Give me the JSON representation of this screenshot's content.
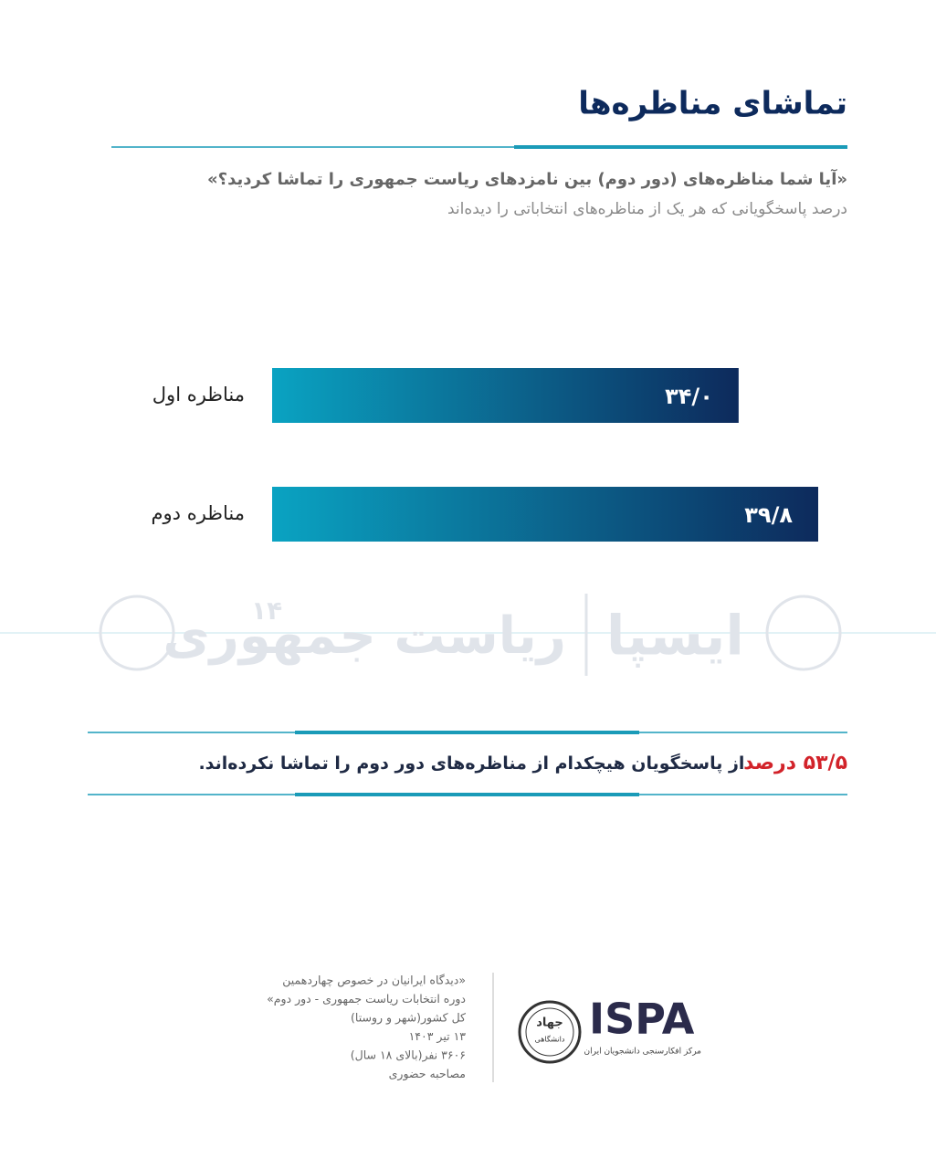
{
  "chart_data": {
    "type": "hbar",
    "title": "تماشای مناظره‌ها",
    "question": "«آیا شما مناظره‌های (دور دوم) بین نامزدهای ریاست جمهوری را تماشا کردید؟»",
    "subtitle": "درصد پاسخگویانی که هر یک از مناظره‌های انتخاباتی را دیده‌اند",
    "categories": [
      "مناظره اول",
      "مناظره دوم"
    ],
    "values": [
      34.0,
      39.8
    ],
    "value_labels": [
      "۳۴/۰",
      "۳۹/۸"
    ],
    "colors": [
      "#0aa3c2",
      "#0d2a5c"
    ],
    "watermark": [
      "ایسپا",
      "ریاست جمهوری",
      "۱۴"
    ],
    "highlight": {
      "number": "۵۳/۵ درصد",
      "text": "از پاسخگویان هیچکدام از مناظره‌های دور دوم را تماشا نکرده‌اند."
    },
    "footer": {
      "notes": [
        "«دیدگاه ایرانیان در خصوص چهاردهمین",
        "دوره انتخابات ریاست جمهوری - دور دوم»",
        "کل کشور(شهر و روستا)",
        "۱۳ تیر ۱۴۰۳",
        "۳۶۰۶ نفر(بالای ۱۸ سال)",
        "مصاحبه حضوری"
      ],
      "logo_text": [
        "جهاد",
        "دانشگاهی"
      ],
      "brand": "ISPA",
      "brand_subtitle": "مرکز افکارسنجی دانشجویان ایران"
    }
  }
}
